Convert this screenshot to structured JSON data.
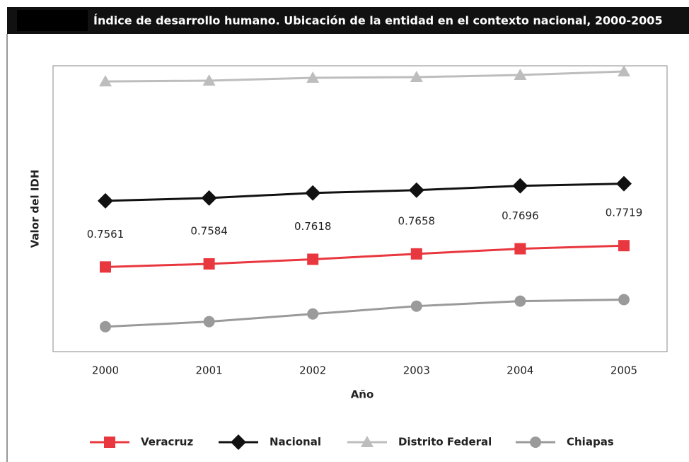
{
  "chart_data": {
    "type": "line",
    "title": "Índice de desarrollo humano. Ubicación de la entidad en el contexto nacional, 2000-2005",
    "xlabel": "Año",
    "ylabel": "Valor del IDH",
    "categories": [
      "2000",
      "2001",
      "2002",
      "2003",
      "2004",
      "2005"
    ],
    "ylim": [
      0.6934,
      0.9051
    ],
    "series": [
      {
        "name": "Veracruz",
        "color": "#e8373e",
        "marker": "square",
        "values": [
          0.7561,
          0.7584,
          0.7618,
          0.7658,
          0.7696,
          0.7719
        ],
        "show_labels": true
      },
      {
        "name": "Nacional",
        "color": "#111111",
        "marker": "diamond",
        "values": [
          0.8051,
          0.8072,
          0.8109,
          0.813,
          0.8162,
          0.8178
        ]
      },
      {
        "name": "Distrito Federal",
        "color": "#bdbdbd",
        "marker": "triangle",
        "values": [
          0.8935,
          0.8941,
          0.8962,
          0.8967,
          0.8983,
          0.9009
        ]
      },
      {
        "name": "Chiapas",
        "color": "#9a9a9a",
        "marker": "circle",
        "values": [
          0.7119,
          0.7156,
          0.7213,
          0.7271,
          0.7308,
          0.7319
        ]
      }
    ]
  }
}
